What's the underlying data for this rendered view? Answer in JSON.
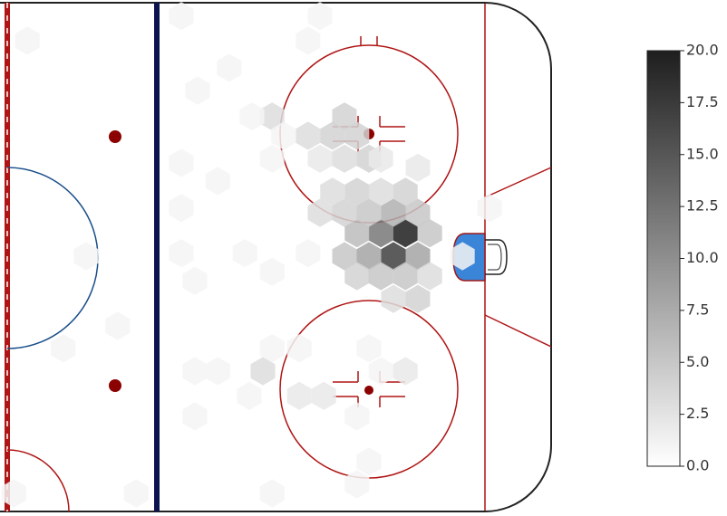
{
  "chart_data": {
    "type": "hexbin",
    "x": [
      73.2,
      71.0,
      68.7,
      66.5,
      75.5,
      71.0,
      75.5,
      64.3,
      62.0,
      66.5,
      64.3,
      68.7,
      73.2,
      62.0,
      64.3,
      68.7,
      73.2,
      75.5,
      71.0,
      77.7,
      77.7,
      59.8,
      57.5,
      55.3,
      59.8,
      62.0,
      64.3,
      66.5,
      62.0,
      68.7,
      57.5,
      75.5,
      48.7,
      45.0,
      50.8,
      48.7,
      40.8,
      35.0,
      32.0,
      57.5,
      55.3,
      3.7,
      32.0,
      38.7,
      32.0,
      32.0,
      34.5,
      43.7,
      48.7,
      55.3,
      14.5,
      20.3,
      10.3,
      47.0,
      48.7,
      53.7,
      58.2,
      53.7,
      66.5,
      68.7,
      73.2,
      64.3,
      66.5,
      64.3,
      48.7,
      23.7,
      1.2,
      34.5,
      38.7,
      34.5,
      88.7,
      83.7,
      44.5
    ],
    "y": [
      4.1,
      0.3,
      4.1,
      0.3,
      0.3,
      7.5,
      7.5,
      4.1,
      7.5,
      7.5,
      11.0,
      11.0,
      11.0,
      0.3,
      -3.0,
      -3.0,
      -3.0,
      -6.8,
      -6.8,
      4.1,
      -3.0,
      11.0,
      7.5,
      20.3,
      20.3,
      23.5,
      20.3,
      16.5,
      16.5,
      16.5,
      16.5,
      15.0,
      23.5,
      23.5,
      20.3,
      16.5,
      31.6,
      27.8,
      40.2,
      40.2,
      36.1,
      36.1,
      15.8,
      12.8,
      8.3,
      0.8,
      -3.8,
      0.8,
      -2.3,
      0.8,
      0.3,
      -11.3,
      -15.0,
      -18.8,
      -15.0,
      -15.0,
      -22.9,
      -22.9,
      -15.0,
      -18.8,
      -18.8,
      -26.3,
      -33.8,
      -37.6,
      -39.1,
      -39.1,
      -39.1,
      -18.8,
      -18.8,
      -26.3,
      8.3,
      0.3,
      -22.9
    ],
    "values": [
      20,
      17,
      12,
      8,
      8,
      7,
      5,
      6,
      4,
      5,
      4,
      3,
      4,
      5,
      4,
      5,
      5,
      4,
      3,
      5,
      3,
      3,
      3,
      3,
      4,
      4,
      4,
      4,
      3,
      2,
      2,
      2,
      3,
      1,
      1,
      1,
      1,
      1,
      1,
      1,
      1,
      1,
      1,
      1,
      1,
      1,
      1,
      1,
      1,
      1,
      1,
      1,
      1,
      3,
      1,
      1,
      2,
      2,
      1,
      1,
      2,
      1,
      1,
      1,
      1,
      1,
      1,
      1,
      1,
      1,
      1,
      1,
      1
    ],
    "clim": [
      0,
      20
    ],
    "colorbar_ticks": [
      {
        "value": 0,
        "label": "0.0"
      },
      {
        "value": 2.5,
        "label": "2.5"
      },
      {
        "value": 5,
        "label": "5.0"
      },
      {
        "value": 7.5,
        "label": "7.5"
      },
      {
        "value": 10,
        "label": "10.0"
      },
      {
        "value": 12.5,
        "label": "12.5"
      },
      {
        "value": 15,
        "label": "15.0"
      },
      {
        "value": 17.5,
        "label": "17.5"
      },
      {
        "value": 20,
        "label": "20.0"
      }
    ],
    "colormap": [
      "#ffffff",
      "#1e1e1e"
    ]
  }
}
